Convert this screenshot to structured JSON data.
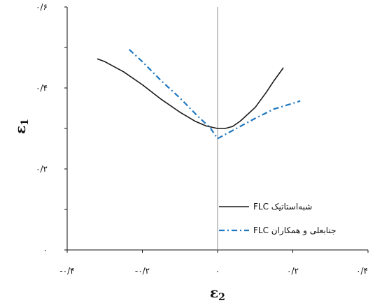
{
  "chart_data": {
    "type": "line",
    "xlabel": {
      "main": "ε",
      "sub": "2"
    },
    "ylabel": {
      "main": "ε",
      "sub": "1"
    },
    "xlim": [
      -0.4,
      0.4
    ],
    "ylim": [
      0,
      0.6
    ],
    "x_ticks": [
      {
        "value": -0.4,
        "label": "-۰/۴"
      },
      {
        "value": -0.2,
        "label": "-۰/۲"
      },
      {
        "value": 0,
        "label": "۰"
      },
      {
        "value": 0.2,
        "label": "۰/۲"
      },
      {
        "value": 0.4,
        "label": "۰/۴"
      }
    ],
    "y_ticks": [
      {
        "value": 0,
        "label": "۰"
      },
      {
        "value": 0.2,
        "label": "۰/۲"
      },
      {
        "value": 0.4,
        "label": "۰/۴"
      },
      {
        "value": 0.6,
        "label": "۰/۶"
      }
    ],
    "minor_y_step": 0.1,
    "vertical_reference_line_x": 0,
    "grid": false,
    "legend_position": "bottom-right",
    "series": [
      {
        "name": "FLC شبه‌استاتیک",
        "color": "#1a1a1a",
        "dash": "solid",
        "points": [
          [
            -0.32,
            0.472
          ],
          [
            -0.3,
            0.465
          ],
          [
            -0.25,
            0.44
          ],
          [
            -0.2,
            0.408
          ],
          [
            -0.15,
            0.372
          ],
          [
            -0.1,
            0.34
          ],
          [
            -0.06,
            0.318
          ],
          [
            -0.03,
            0.306
          ],
          [
            0,
            0.3
          ],
          [
            0.02,
            0.3
          ],
          [
            0.04,
            0.305
          ],
          [
            0.06,
            0.318
          ],
          [
            0.1,
            0.352
          ],
          [
            0.13,
            0.39
          ],
          [
            0.15,
            0.418
          ],
          [
            0.175,
            0.45
          ]
        ]
      },
      {
        "name": "FLC جنابعلی و همکاران",
        "color": "#1f77c0",
        "dash": "dash-dot",
        "points": [
          [
            -0.235,
            0.495
          ],
          [
            -0.2,
            0.465
          ],
          [
            -0.15,
            0.418
          ],
          [
            -0.1,
            0.375
          ],
          [
            -0.05,
            0.328
          ],
          [
            -0.02,
            0.302
          ],
          [
            0,
            0.275
          ],
          [
            0.05,
            0.3
          ],
          [
            0.1,
            0.325
          ],
          [
            0.15,
            0.348
          ],
          [
            0.2,
            0.362
          ],
          [
            0.22,
            0.368
          ]
        ]
      }
    ]
  }
}
